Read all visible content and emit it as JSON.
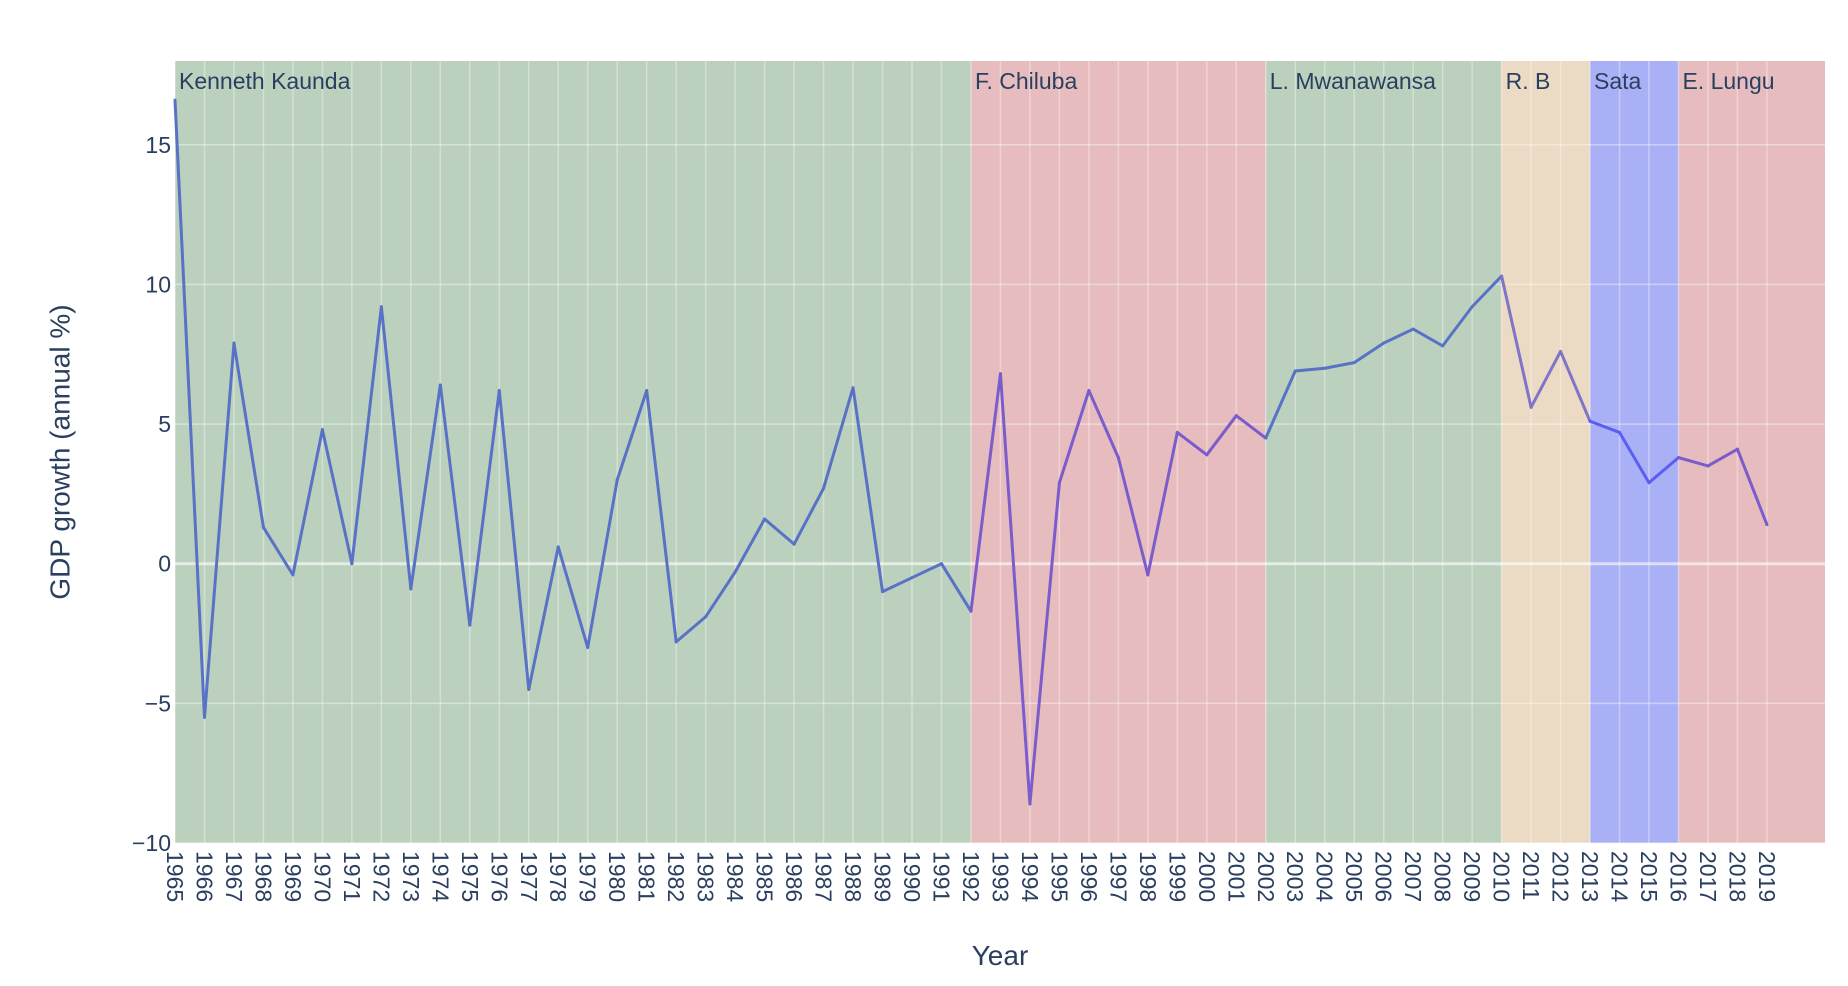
{
  "chart_data": {
    "type": "line",
    "xlabel": "Year",
    "ylabel": "GDP growth (annual %)",
    "ylim": [
      -10,
      18
    ],
    "y_ticks": [
      -10,
      -5,
      0,
      5,
      10,
      15
    ],
    "y_tick_labels": [
      "−10",
      "−5",
      "0",
      "5",
      "10",
      "15"
    ],
    "grid": true,
    "line_color": "#5a67c8",
    "years": [
      1965,
      1966,
      1967,
      1968,
      1969,
      1970,
      1971,
      1972,
      1973,
      1974,
      1975,
      1976,
      1977,
      1978,
      1979,
      1980,
      1981,
      1982,
      1983,
      1984,
      1985,
      1986,
      1987,
      1988,
      1989,
      1990,
      1991,
      1992,
      1993,
      1994,
      1995,
      1996,
      1997,
      1998,
      1999,
      2000,
      2001,
      2002,
      2003,
      2004,
      2005,
      2006,
      2007,
      2008,
      2009,
      2010,
      2011,
      2012,
      2013,
      2014,
      2015,
      2016,
      2017,
      2018,
      2019
    ],
    "values": [
      16.6,
      -5.5,
      7.9,
      1.3,
      -0.4,
      4.8,
      0.0,
      9.2,
      -0.9,
      6.4,
      -2.2,
      6.2,
      -4.5,
      0.6,
      -3.0,
      3.0,
      6.2,
      -2.8,
      -1.9,
      -0.3,
      1.6,
      0.7,
      2.7,
      6.3,
      -1.0,
      -0.5,
      0.0,
      -1.7,
      6.8,
      -8.6,
      2.9,
      6.2,
      3.8,
      -0.4,
      4.7,
      3.9,
      5.3,
      4.5,
      6.9,
      7.0,
      7.2,
      7.9,
      8.4,
      7.8,
      9.2,
      10.3,
      5.6,
      7.6,
      5.1,
      4.7,
      2.9,
      3.8,
      3.5,
      4.1,
      1.4
    ],
    "eras": [
      {
        "label": "Kenneth Kaunda",
        "start": 1965,
        "end": 1992,
        "color": "#bbd1be",
        "line_color": "#5a72c6"
      },
      {
        "label": "F. Chiluba",
        "start": 1992,
        "end": 2002,
        "color": "#e7bcbe",
        "line_color": "#7a5ccc"
      },
      {
        "label": "L. Mwanawansa",
        "start": 2002,
        "end": 2010,
        "color": "#bbd1be",
        "line_color": "#5a72c6"
      },
      {
        "label": "R. B",
        "start": 2010,
        "end": 2013,
        "color": "#ebdbc4",
        "line_color": "#7f74c8"
      },
      {
        "label": "Sata",
        "start": 2013,
        "end": 2016,
        "color": "#aab0f6",
        "line_color": "#5a5ef2"
      },
      {
        "label": "E. Lungu",
        "start": 2016,
        "end": 2021,
        "color": "#e7bcbe",
        "line_color": "#7a5ccc"
      }
    ]
  }
}
